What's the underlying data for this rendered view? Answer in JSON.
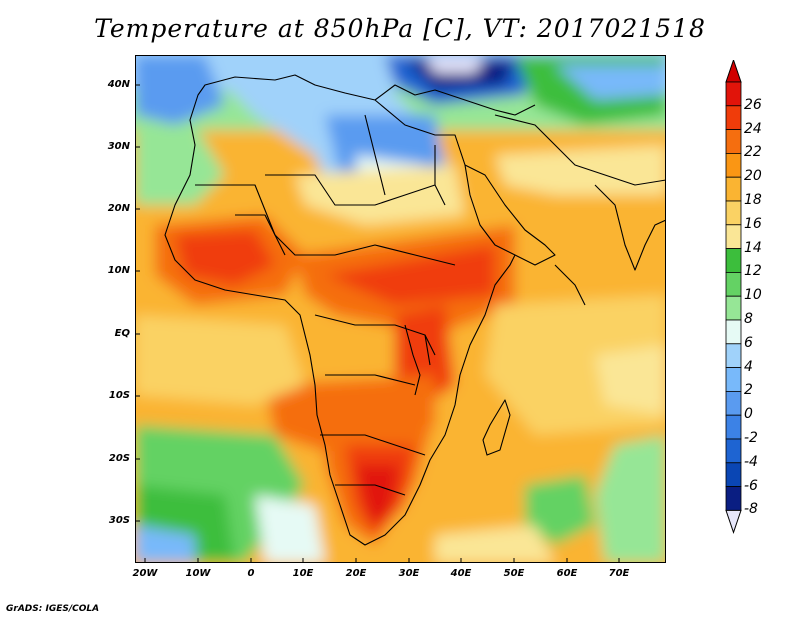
{
  "title": "Temperature at 850hPa [C], VT: 2017021518",
  "credit": "GrADS: IGES/COLA",
  "map": {
    "lat_ticks": [
      "40N",
      "30N",
      "20N",
      "10N",
      "EQ",
      "10S",
      "20S",
      "30S"
    ],
    "lon_ticks": [
      "20W",
      "10W",
      "0",
      "10E",
      "20E",
      "30E",
      "40E",
      "50E",
      "60E",
      "70E"
    ]
  },
  "colorbar": {
    "labels": [
      "26",
      "24",
      "22",
      "20",
      "18",
      "16",
      "14",
      "12",
      "10",
      "8",
      "6",
      "4",
      "2",
      "0",
      "-2",
      "-4",
      "-6",
      "-8"
    ],
    "colors": [
      "#e1140a",
      "#f03c0a",
      "#f56e0f",
      "#fa9614",
      "#fab432",
      "#fad264",
      "#fae696",
      "#3cbe3c",
      "#64d264",
      "#96e696",
      "#e6faf5",
      "#a0d2fa",
      "#78b9fa",
      "#5a9bf0",
      "#3c82e6",
      "#1e64d2",
      "#0a46b4",
      "#0a1e82"
    ],
    "over_color": "#d10000",
    "under_color": "#e6e6fa"
  }
}
